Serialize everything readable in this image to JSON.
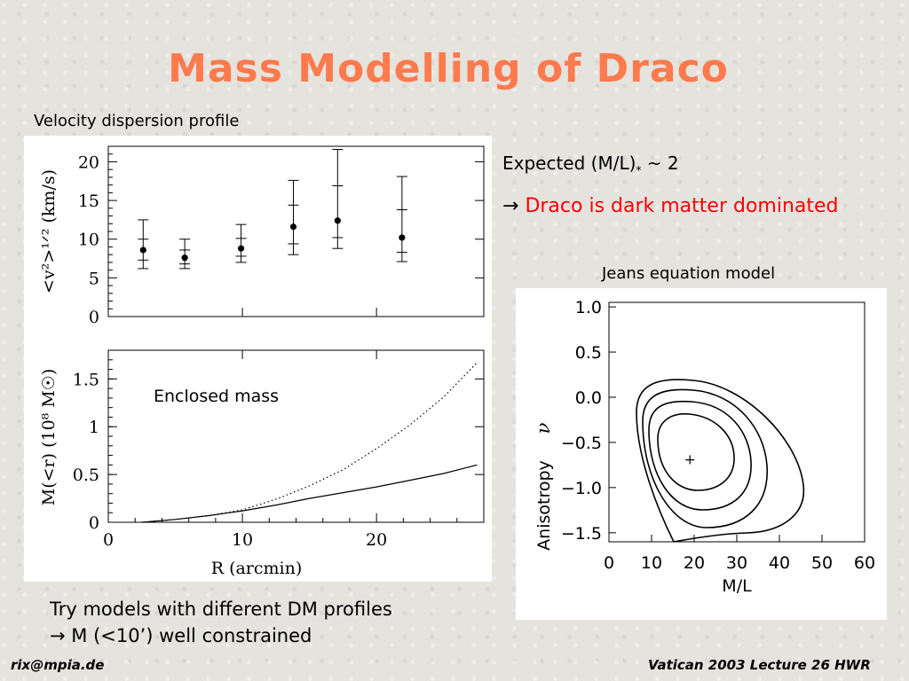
{
  "slide": {
    "title": "Mass Modelling of Draco",
    "left_caption": "Velocity dispersion profile",
    "expected_text": "Expected (M/L)",
    "expected_sub": "*",
    "expected_tail": " ~ 2",
    "arrow": "→",
    "conclusion": "Draco is dark matter dominated",
    "jeans_caption": "Jeans equation model",
    "bottom_line1": "Try models with different DM profiles",
    "bottom_line2_arrow": "→",
    "bottom_line2": " M (<10’) well constrained",
    "footer_left": "rix@mpia.de",
    "footer_right": "Vatican 2003 Lecture 26 HWR",
    "colors": {
      "title": "#ff7a4d",
      "conclusion": "#ff0000"
    }
  },
  "chart_data": [
    {
      "type": "scatter",
      "xlim": [
        0,
        28
      ],
      "ylim": [
        0,
        22
      ],
      "yticks": [
        "0",
        "5",
        "10",
        "15",
        "20"
      ],
      "ylabel": "<v²>¹ᐟ² (km/s)",
      "points": [
        {
          "x": 2.6,
          "y": 8.6,
          "lo": 6.2,
          "hi": 12.5,
          "in_lo": 7.3,
          "in_hi": 10.0
        },
        {
          "x": 5.7,
          "y": 7.6,
          "lo": 6.2,
          "hi": 10.0,
          "in_lo": 6.8,
          "in_hi": 8.6
        },
        {
          "x": 9.9,
          "y": 8.8,
          "lo": 7.0,
          "hi": 11.9,
          "in_lo": 7.8,
          "in_hi": 10.1
        },
        {
          "x": 13.8,
          "y": 11.6,
          "lo": 8.0,
          "hi": 17.6,
          "in_lo": 9.4,
          "in_hi": 14.4
        },
        {
          "x": 17.1,
          "y": 12.4,
          "lo": 8.8,
          "hi": 21.6,
          "in_lo": 10.2,
          "in_hi": 16.9
        },
        {
          "x": 21.9,
          "y": 10.2,
          "lo": 7.1,
          "hi": 18.1,
          "in_lo": 8.3,
          "in_hi": 13.8
        }
      ]
    },
    {
      "type": "line",
      "xlim": [
        0,
        28
      ],
      "ylim": [
        0,
        1.8
      ],
      "xticks": [
        "0",
        "10",
        "20"
      ],
      "yticks": [
        "0",
        "0.5",
        "1",
        "1.5"
      ],
      "xlabel": "R (arcmin)",
      "ylabel": "M(<r) (10⁸ M☉)",
      "annotation": "Enclosed mass",
      "series": [
        {
          "style": "dotted",
          "x": [
            2.5,
            5,
            7.5,
            10,
            12.5,
            15,
            17.5,
            20,
            22.5,
            25,
            27.5
          ],
          "y": [
            0,
            0.03,
            0.07,
            0.13,
            0.24,
            0.38,
            0.55,
            0.77,
            1.02,
            1.31,
            1.67
          ]
        },
        {
          "style": "solid",
          "x": [
            2.5,
            5,
            7.5,
            10,
            12.5,
            15,
            17.5,
            20,
            22.5,
            25,
            27.5
          ],
          "y": [
            0,
            0.03,
            0.07,
            0.12,
            0.18,
            0.25,
            0.31,
            0.37,
            0.44,
            0.51,
            0.6
          ]
        }
      ]
    },
    {
      "type": "contour",
      "xlim": [
        0,
        60
      ],
      "ylim": [
        -1.6,
        1.05
      ],
      "xticks": [
        "0",
        "10",
        "20",
        "30",
        "40",
        "50",
        "60"
      ],
      "yticks": [
        "1.0",
        "0.5",
        "0.0",
        "−0.5",
        "−1.0",
        "−1.5"
      ],
      "xlabel": "M/L",
      "ylabel": "Anisotropy",
      "ylabel_symbol": "ν",
      "best_fit": {
        "x": 19,
        "y": -0.68,
        "marker": "+"
      }
    }
  ]
}
